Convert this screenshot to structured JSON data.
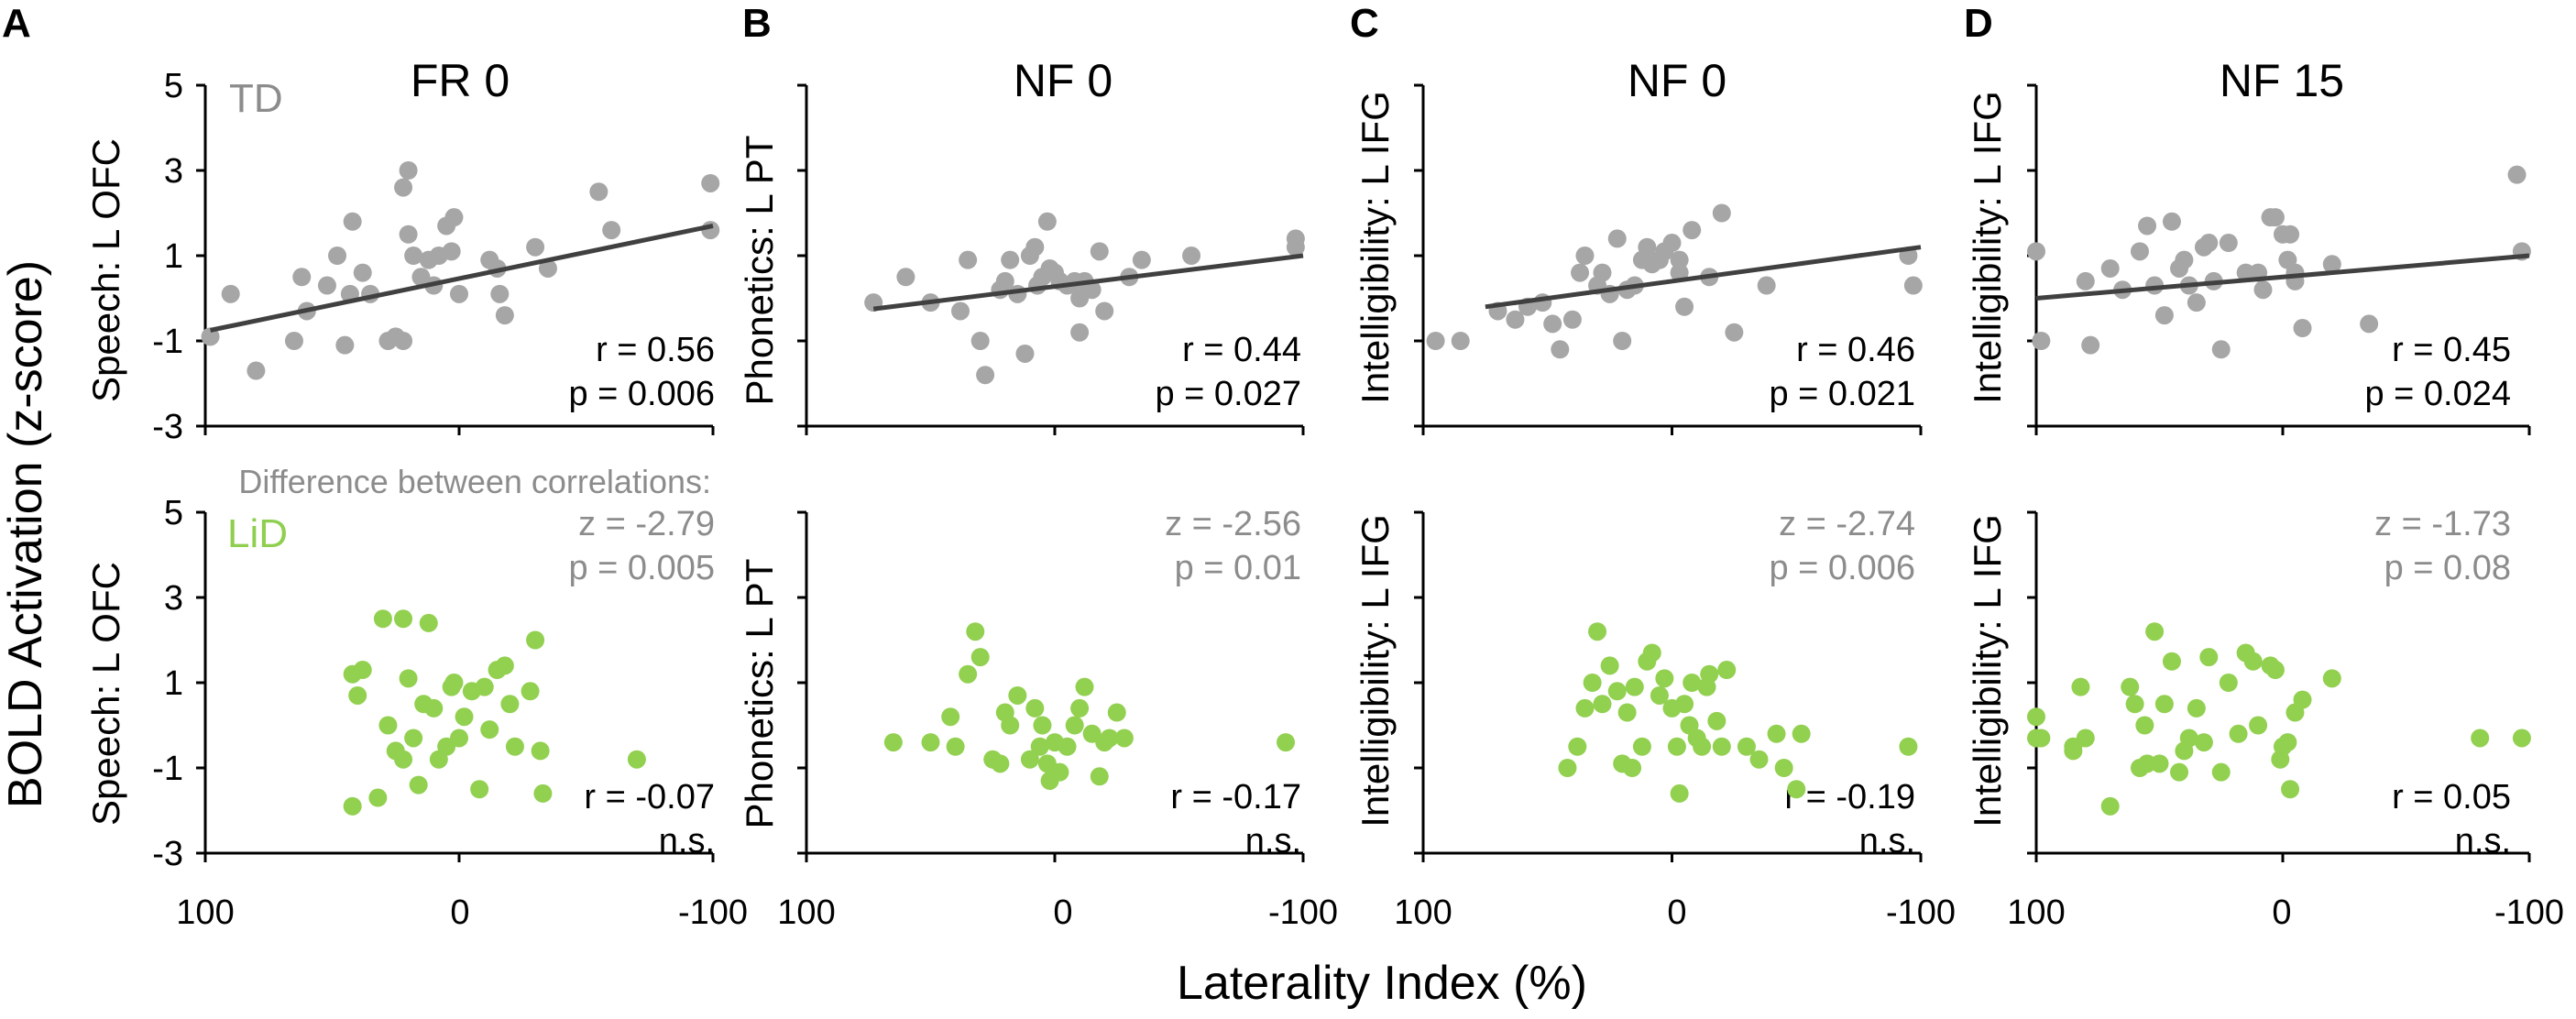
{
  "figure": {
    "shared_ylabel": "BOLD Activation (z-score)",
    "shared_xlabel": "Laterality Index (%)",
    "top_legend": "TD",
    "bottom_legend": "LiD",
    "difference_note": "Difference between correlations:",
    "colors": {
      "td": "#a6a6a6",
      "lid": "#92d050",
      "fit_line": "#404040",
      "axis": "#000000",
      "stat_gray": "#8c8c8c"
    }
  },
  "chart_data": [
    {
      "type": "scatter",
      "panel": "A",
      "title": "FR 0",
      "ylabel": "Speech: L OFC",
      "x_ticks": [
        "100",
        "0",
        "-100"
      ],
      "y_ticks": [
        "5",
        "3",
        "1",
        "-1",
        "-3"
      ],
      "xlim": [
        100,
        -100
      ],
      "ylim": [
        -3,
        5
      ],
      "td": {
        "stats": [
          "r = 0.56",
          "p = 0.006"
        ],
        "fit": {
          "x": [
            98,
            -100
          ],
          "y": [
            -0.75,
            1.7
          ]
        },
        "points": [
          [
            98,
            -0.9
          ],
          [
            90,
            0.1
          ],
          [
            80,
            -1.7
          ],
          [
            65,
            -1.0
          ],
          [
            62,
            0.5
          ],
          [
            60,
            -0.3
          ],
          [
            52,
            0.3
          ],
          [
            48,
            1.0
          ],
          [
            45,
            -1.1
          ],
          [
            43,
            0.1
          ],
          [
            42,
            1.8
          ],
          [
            38,
            0.6
          ],
          [
            35,
            0.1
          ],
          [
            28,
            -1.0
          ],
          [
            25,
            -0.9
          ],
          [
            22,
            2.6
          ],
          [
            20,
            1.5
          ],
          [
            18,
            1.0
          ],
          [
            15,
            0.5
          ],
          [
            12,
            0.9
          ],
          [
            10,
            0.3
          ],
          [
            8,
            1.0
          ],
          [
            5,
            1.7
          ],
          [
            3,
            1.1
          ],
          [
            2,
            1.9
          ],
          [
            0,
            0.1
          ],
          [
            -12,
            0.9
          ],
          [
            -15,
            0.7
          ],
          [
            -18,
            -0.4
          ],
          [
            -16,
            0.1
          ],
          [
            -30,
            1.2
          ],
          [
            -35,
            0.7
          ],
          [
            -55,
            2.5
          ],
          [
            -60,
            1.6
          ],
          [
            -99,
            2.7
          ],
          [
            -99,
            1.6
          ],
          [
            20,
            3.0
          ],
          [
            22,
            -1.0
          ]
        ]
      },
      "lid": {
        "stats": [
          "z = -2.79",
          "p = 0.005",
          "r = -0.07",
          "n.s."
        ],
        "points": [
          [
            42,
            -1.9
          ],
          [
            42,
            1.2
          ],
          [
            40,
            0.7
          ],
          [
            38,
            1.3
          ],
          [
            32,
            -1.7
          ],
          [
            30,
            2.5
          ],
          [
            28,
            0.0
          ],
          [
            25,
            -0.6
          ],
          [
            22,
            2.5
          ],
          [
            22,
            -0.8
          ],
          [
            20,
            1.1
          ],
          [
            18,
            -0.3
          ],
          [
            16,
            -1.4
          ],
          [
            14,
            0.5
          ],
          [
            12,
            2.4
          ],
          [
            10,
            0.4
          ],
          [
            8,
            -0.8
          ],
          [
            5,
            -0.5
          ],
          [
            3,
            0.9
          ],
          [
            2,
            1.0
          ],
          [
            0,
            -0.3
          ],
          [
            -2,
            0.2
          ],
          [
            -5,
            0.8
          ],
          [
            -8,
            -1.5
          ],
          [
            -10,
            0.9
          ],
          [
            -12,
            -0.1
          ],
          [
            -15,
            1.3
          ],
          [
            -18,
            1.4
          ],
          [
            -20,
            0.5
          ],
          [
            -22,
            -0.5
          ],
          [
            -28,
            0.8
          ],
          [
            -30,
            2.0
          ],
          [
            -32,
            -0.6
          ],
          [
            -33,
            -1.6
          ],
          [
            -70,
            -0.8
          ]
        ]
      }
    },
    {
      "type": "scatter",
      "panel": "B",
      "title": "NF 0",
      "ylabel": "Phonetics: L PT",
      "x_ticks": [
        "100",
        "0",
        "-100"
      ],
      "y_ticks": [],
      "xlim": [
        100,
        -100
      ],
      "ylim": [
        -3,
        5
      ],
      "td": {
        "stats": [
          "r = 0.44",
          "p = 0.027"
        ],
        "fit": {
          "x": [
            73,
            -100
          ],
          "y": [
            -0.25,
            1.0
          ]
        },
        "points": [
          [
            73,
            -0.1
          ],
          [
            60,
            0.5
          ],
          [
            50,
            -0.1
          ],
          [
            38,
            -0.3
          ],
          [
            35,
            0.9
          ],
          [
            30,
            -1.0
          ],
          [
            28,
            -1.8
          ],
          [
            22,
            0.2
          ],
          [
            20,
            0.4
          ],
          [
            18,
            0.9
          ],
          [
            15,
            0.1
          ],
          [
            12,
            -1.3
          ],
          [
            10,
            1.0
          ],
          [
            8,
            1.2
          ],
          [
            7,
            0.3
          ],
          [
            5,
            0.5
          ],
          [
            3,
            1.8
          ],
          [
            2,
            0.7
          ],
          [
            0,
            0.6
          ],
          [
            -2,
            0.4
          ],
          [
            -5,
            0.3
          ],
          [
            -8,
            0.4
          ],
          [
            -10,
            0.0
          ],
          [
            -10,
            -0.8
          ],
          [
            -12,
            0.4
          ],
          [
            -15,
            0.2
          ],
          [
            -18,
            1.1
          ],
          [
            -20,
            -0.3
          ],
          [
            -30,
            0.5
          ],
          [
            -35,
            0.9
          ],
          [
            -55,
            1.0
          ],
          [
            -97,
            1.4
          ],
          [
            -97,
            1.2
          ]
        ]
      },
      "lid": {
        "stats": [
          "z = -2.56",
          "p = 0.01",
          "r = -0.17",
          "n.s."
        ],
        "points": [
          [
            65,
            -0.4
          ],
          [
            50,
            -0.4
          ],
          [
            42,
            0.2
          ],
          [
            40,
            -0.5
          ],
          [
            35,
            1.2
          ],
          [
            32,
            2.2
          ],
          [
            30,
            1.6
          ],
          [
            25,
            -0.8
          ],
          [
            22,
            -0.9
          ],
          [
            20,
            0.3
          ],
          [
            18,
            0.0
          ],
          [
            15,
            0.7
          ],
          [
            10,
            -0.8
          ],
          [
            8,
            0.4
          ],
          [
            6,
            -0.5
          ],
          [
            5,
            0.0
          ],
          [
            3,
            -0.9
          ],
          [
            2,
            -1.3
          ],
          [
            0,
            -0.4
          ],
          [
            -2,
            -1.1
          ],
          [
            -5,
            -0.5
          ],
          [
            -8,
            0.0
          ],
          [
            -10,
            0.4
          ],
          [
            -12,
            0.9
          ],
          [
            -15,
            -0.2
          ],
          [
            -18,
            -1.2
          ],
          [
            -20,
            -0.4
          ],
          [
            -22,
            -0.3
          ],
          [
            -25,
            0.3
          ],
          [
            -28,
            -0.3
          ],
          [
            -93,
            -0.4
          ]
        ]
      }
    },
    {
      "type": "scatter",
      "panel": "C",
      "title": "NF 0",
      "ylabel": "Intelligibility: L IFG",
      "x_ticks": [
        "100",
        "0",
        "-100"
      ],
      "y_ticks": [],
      "xlim": [
        100,
        -100
      ],
      "ylim": [
        -3,
        5
      ],
      "td": {
        "stats": [
          "r = 0.46",
          "p = 0.021"
        ],
        "fit": {
          "x": [
            75,
            -100
          ],
          "y": [
            -0.2,
            1.2
          ]
        },
        "points": [
          [
            95,
            -1.0
          ],
          [
            85,
            -1.0
          ],
          [
            70,
            -0.3
          ],
          [
            63,
            -0.5
          ],
          [
            58,
            -0.2
          ],
          [
            52,
            -0.1
          ],
          [
            48,
            -0.6
          ],
          [
            45,
            -1.2
          ],
          [
            40,
            -0.5
          ],
          [
            37,
            0.6
          ],
          [
            35,
            1.0
          ],
          [
            30,
            0.3
          ],
          [
            28,
            0.6
          ],
          [
            25,
            0.1
          ],
          [
            22,
            1.4
          ],
          [
            20,
            -1.0
          ],
          [
            18,
            0.2
          ],
          [
            15,
            0.3
          ],
          [
            12,
            0.9
          ],
          [
            10,
            1.2
          ],
          [
            8,
            0.8
          ],
          [
            5,
            0.9
          ],
          [
            3,
            1.1
          ],
          [
            0,
            1.3
          ],
          [
            -3,
            0.6
          ],
          [
            -5,
            -0.2
          ],
          [
            -8,
            1.6
          ],
          [
            -15,
            0.5
          ],
          [
            -20,
            2.0
          ],
          [
            -25,
            -0.8
          ],
          [
            -38,
            0.3
          ],
          [
            -95,
            1.0
          ],
          [
            -97,
            0.3
          ],
          [
            -3,
            0.9
          ]
        ]
      },
      "lid": {
        "stats": [
          "z = -2.74",
          "p = 0.006",
          "r = -0.19",
          "n.s."
        ],
        "points": [
          [
            42,
            -1.0
          ],
          [
            38,
            -0.5
          ],
          [
            35,
            0.4
          ],
          [
            32,
            1.0
          ],
          [
            30,
            2.2
          ],
          [
            28,
            0.5
          ],
          [
            25,
            1.4
          ],
          [
            22,
            0.8
          ],
          [
            20,
            -0.9
          ],
          [
            18,
            0.3
          ],
          [
            16,
            -1.0
          ],
          [
            15,
            0.9
          ],
          [
            12,
            -0.5
          ],
          [
            10,
            1.5
          ],
          [
            8,
            1.7
          ],
          [
            5,
            0.7
          ],
          [
            3,
            1.1
          ],
          [
            0,
            0.4
          ],
          [
            -2,
            -0.5
          ],
          [
            -3,
            -1.6
          ],
          [
            -5,
            0.5
          ],
          [
            -7,
            0.0
          ],
          [
            -8,
            1.0
          ],
          [
            -10,
            -0.3
          ],
          [
            -12,
            -0.5
          ],
          [
            -14,
            0.9
          ],
          [
            -15,
            1.2
          ],
          [
            -18,
            0.1
          ],
          [
            -20,
            -0.5
          ],
          [
            -22,
            1.3
          ],
          [
            -30,
            -0.5
          ],
          [
            -35,
            -0.8
          ],
          [
            -42,
            -0.2
          ],
          [
            -45,
            -1.0
          ],
          [
            -50,
            -1.5
          ],
          [
            -52,
            -0.2
          ],
          [
            -95,
            -0.5
          ]
        ]
      }
    },
    {
      "type": "scatter",
      "panel": "D",
      "title": "NF 15",
      "ylabel": "Intelligibility: L IFG",
      "x_ticks": [
        "100",
        "0",
        "-100"
      ],
      "y_ticks": [],
      "xlim": [
        100,
        -100
      ],
      "ylim": [
        -3,
        5
      ],
      "td": {
        "stats": [
          "r = 0.45",
          "p = 0.024"
        ],
        "fit": {
          "x": [
            100,
            -100
          ],
          "y": [
            0.0,
            1.0
          ]
        },
        "points": [
          [
            100,
            1.1
          ],
          [
            98,
            -1.0
          ],
          [
            80,
            0.4
          ],
          [
            78,
            -1.1
          ],
          [
            70,
            0.7
          ],
          [
            65,
            0.2
          ],
          [
            58,
            1.1
          ],
          [
            55,
            1.7
          ],
          [
            52,
            0.3
          ],
          [
            48,
            -0.4
          ],
          [
            45,
            1.8
          ],
          [
            42,
            0.7
          ],
          [
            40,
            0.9
          ],
          [
            38,
            0.3
          ],
          [
            35,
            -0.1
          ],
          [
            32,
            1.2
          ],
          [
            30,
            1.3
          ],
          [
            28,
            0.4
          ],
          [
            25,
            -1.2
          ],
          [
            22,
            1.3
          ],
          [
            15,
            0.6
          ],
          [
            10,
            0.6
          ],
          [
            8,
            0.2
          ],
          [
            5,
            1.9
          ],
          [
            3,
            1.9
          ],
          [
            0,
            1.5
          ],
          [
            -2,
            0.9
          ],
          [
            -3,
            1.5
          ],
          [
            -5,
            0.4
          ],
          [
            -8,
            -0.7
          ],
          [
            -35,
            -0.6
          ],
          [
            -5,
            0.6
          ],
          [
            -20,
            0.8
          ],
          [
            -95,
            2.9
          ],
          [
            -97,
            1.1
          ]
        ]
      },
      "lid": {
        "stats": [
          "z = -1.73",
          "p = 0.08",
          "r = 0.05",
          "n.s."
        ],
        "points": [
          [
            100,
            0.2
          ],
          [
            100,
            -0.3
          ],
          [
            98,
            -0.3
          ],
          [
            85,
            -0.5
          ],
          [
            85,
            -0.6
          ],
          [
            82,
            0.9
          ],
          [
            80,
            -0.3
          ],
          [
            70,
            -1.9
          ],
          [
            62,
            0.9
          ],
          [
            60,
            0.5
          ],
          [
            58,
            -1.0
          ],
          [
            56,
            0.0
          ],
          [
            55,
            -0.9
          ],
          [
            52,
            2.2
          ],
          [
            50,
            -0.9
          ],
          [
            48,
            0.5
          ],
          [
            45,
            1.5
          ],
          [
            42,
            -1.1
          ],
          [
            40,
            -0.6
          ],
          [
            38,
            -0.3
          ],
          [
            35,
            0.4
          ],
          [
            32,
            -0.4
          ],
          [
            30,
            1.6
          ],
          [
            25,
            -1.1
          ],
          [
            22,
            1.0
          ],
          [
            18,
            -0.2
          ],
          [
            15,
            1.7
          ],
          [
            12,
            1.5
          ],
          [
            10,
            0.0
          ],
          [
            5,
            1.4
          ],
          [
            3,
            1.3
          ],
          [
            0,
            -0.5
          ],
          [
            -2,
            -0.4
          ],
          [
            -3,
            -1.5
          ],
          [
            -5,
            0.3
          ],
          [
            -8,
            0.6
          ],
          [
            -20,
            1.1
          ],
          [
            -80,
            -0.3
          ],
          [
            -97,
            -0.3
          ],
          [
            1,
            -0.8
          ]
        ]
      }
    }
  ]
}
